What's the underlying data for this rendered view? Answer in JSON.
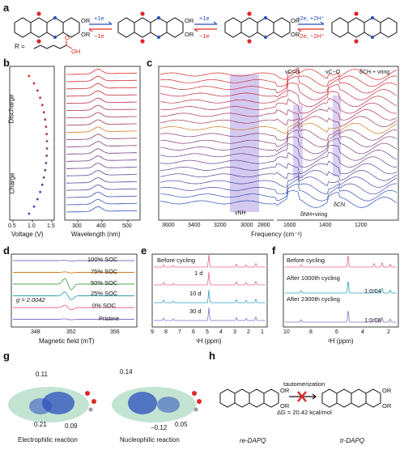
{
  "panels": {
    "a": {
      "letter": "a",
      "labels": {
        "r_group": "R =",
        "r1": "OR",
        "r2": "OR",
        "oh": "OH",
        "o": "O"
      },
      "arrows": [
        {
          "top": "+1e",
          "bottom": "−1e"
        },
        {
          "top": "+1e",
          "bottom": "−1e"
        },
        {
          "top": "+2e, +2H⁺",
          "bottom": "−2e, −2H⁺"
        }
      ]
    },
    "b": {
      "letter": "b",
      "discharge": "Discharge",
      "charge": "Charge",
      "voltage_label": "Voltage (V)",
      "voltage_ticks": [
        "0.5",
        "1.0",
        "1.5"
      ],
      "wavelength_label": "Wavelength (nm)",
      "wavelength_ticks": [
        "300",
        "400",
        "500"
      ]
    },
    "c": {
      "letter": "c",
      "xlabel": "Frequency (cm⁻¹)",
      "ticks_left": [
        "3600",
        "3400",
        "3200",
        "3000",
        "2800"
      ],
      "ticks_right": [
        "1600",
        "1400",
        "1200"
      ],
      "annotations": {
        "nh": "νNH",
        "co1": "νC=O",
        "co2": "νC−O",
        "ch": "δCH + νring",
        "nh2": "δNH+νring",
        "cn": "δCN"
      }
    },
    "d": {
      "letter": "d",
      "soc": [
        "100% SOC",
        "75% SOC",
        "50% SOC",
        "25% SOC",
        "0% SOC",
        "Pristine"
      ],
      "g_value": "g = 2.0042",
      "xlabel": "Magnetic field (mT)",
      "ticks": [
        "348",
        "352",
        "356"
      ]
    },
    "e": {
      "letter": "e",
      "labels": [
        "Before cycling",
        "1 d",
        "10 d",
        "30 d"
      ],
      "xlabel": "¹H (ppm)",
      "ticks": [
        "9",
        "8",
        "7",
        "6",
        "5",
        "4",
        "3",
        "2",
        "1"
      ]
    },
    "f": {
      "letter": "f",
      "labels": [
        "Before cycling",
        "After 1000th cycling",
        "After 2300th cycling"
      ],
      "ratios": [
        "1:0.04",
        "1:0.08"
      ],
      "xlabel": "¹H (ppm)",
      "ticks": [
        "10",
        "8",
        "6",
        "4",
        "2"
      ]
    },
    "g": {
      "letter": "g",
      "values_left": [
        "0.11",
        "0.21",
        "0.09"
      ],
      "values_right": [
        "0.14",
        "−0.12",
        "0.05"
      ],
      "caption_left": "Electrophilic reaction",
      "caption_right": "Nucleophilic reaction"
    },
    "h": {
      "letter": "h",
      "arrow_label": "tautomerization",
      "delta_g": "ΔG = 20.42 kcal/mol",
      "left_name": "re-DAPQ",
      "right_name": "tr-DAPQ",
      "r1": "OR",
      "r2": "OR"
    }
  },
  "colors": {
    "red": "#e02727",
    "blue": "#2b4fbd",
    "orange": "#d3781f",
    "purple": "#a08ae0",
    "pink": "#e6668c",
    "teal": "#35a0c0",
    "violet": "#8a6fc8",
    "green": "#4aa84a",
    "gray": "#888888"
  }
}
